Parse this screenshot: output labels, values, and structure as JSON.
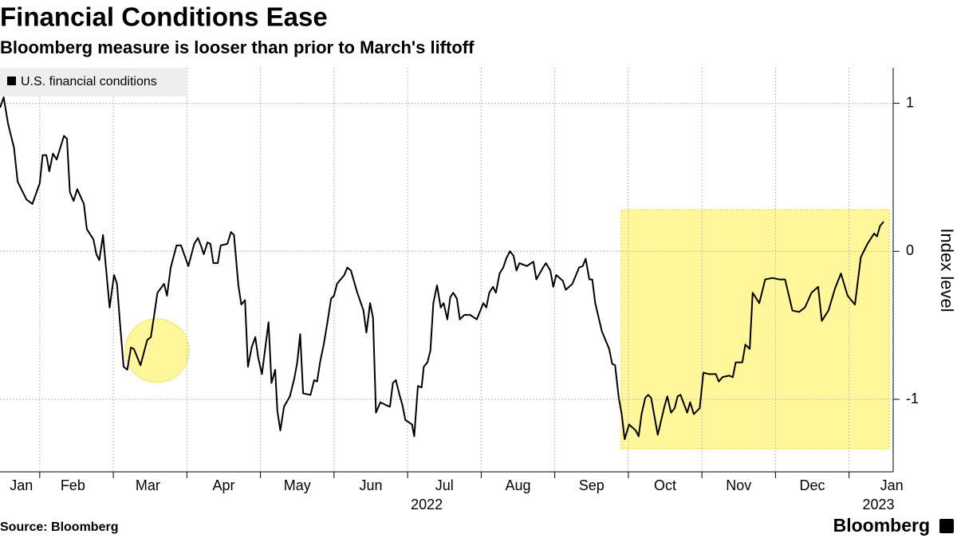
{
  "chart_data": {
    "type": "line",
    "title": "Financial Conditions Ease",
    "subtitle": "Bloomberg measure is looser than prior to March's liftoff",
    "y_axis_label": "Index level",
    "source": "Source: Bloomberg",
    "logo": "Bloomberg",
    "x": [
      0.46,
      0.51,
      0.57,
      0.65,
      0.7,
      0.82,
      0.9,
      1.0,
      1.04,
      1.09,
      1.13,
      1.18,
      1.23,
      1.33,
      1.37,
      1.41,
      1.46,
      1.51,
      1.6,
      1.64,
      1.73,
      1.77,
      1.81,
      1.86,
      1.9,
      1.95,
      2.01,
      2.05,
      2.09,
      2.14,
      2.19,
      2.24,
      2.28,
      2.37,
      2.46,
      2.51,
      2.55,
      2.6,
      2.69,
      2.73,
      2.78,
      2.86,
      2.92,
      3.02,
      3.1,
      3.15,
      3.19,
      3.23,
      3.28,
      3.32,
      3.36,
      3.42,
      3.46,
      3.55,
      3.6,
      3.64,
      3.7,
      3.74,
      3.79,
      3.83,
      3.88,
      3.93,
      3.97,
      4.02,
      4.11,
      4.15,
      4.2,
      4.23,
      4.27,
      4.32,
      4.4,
      4.46,
      4.5,
      4.54,
      4.58,
      4.68,
      4.73,
      4.77,
      4.81,
      4.86,
      4.91,
      4.96,
      5.0,
      5.04,
      5.14,
      5.18,
      5.23,
      5.31,
      5.4,
      5.44,
      5.49,
      5.53,
      5.57,
      5.63,
      5.71,
      5.76,
      5.8,
      5.84,
      5.89,
      5.93,
      5.97,
      6.06,
      6.09,
      6.14,
      6.19,
      6.22,
      6.27,
      6.31,
      6.35,
      6.4,
      6.45,
      6.49,
      6.54,
      6.58,
      6.62,
      6.67,
      6.71,
      6.77,
      6.85,
      6.94,
      7.03,
      7.07,
      7.11,
      7.16,
      7.2,
      7.25,
      7.3,
      7.34,
      7.39,
      7.44,
      7.48,
      7.52,
      7.62,
      7.71,
      7.75,
      7.84,
      7.88,
      7.94,
      7.98,
      8.02,
      8.11,
      8.15,
      8.24,
      8.33,
      8.38,
      8.42,
      8.47,
      8.51,
      8.55,
      8.64,
      8.74,
      8.78,
      8.82,
      8.87,
      8.91,
      8.95,
      9.01,
      9.1,
      9.14,
      9.18,
      9.23,
      9.27,
      9.31,
      9.4,
      9.49,
      9.53,
      9.58,
      9.63,
      9.67,
      9.71,
      9.8,
      9.84,
      9.89,
      9.97,
      10.02,
      10.1,
      10.19,
      10.23,
      10.28,
      10.37,
      10.42,
      10.46,
      10.55,
      10.59,
      10.65,
      10.69,
      10.78,
      10.86,
      10.96,
      11.05,
      11.13,
      11.23,
      11.32,
      11.4,
      11.49,
      11.58,
      11.63,
      11.72,
      11.81,
      11.89,
      11.98,
      12.08,
      12.16,
      12.25,
      12.34,
      12.38,
      12.42,
      12.47
    ],
    "series": [
      {
        "name": "U.S. financial conditions",
        "color": "#000000",
        "values": [
          0.97,
          1.04,
          0.86,
          0.7,
          0.47,
          0.35,
          0.32,
          0.46,
          0.65,
          0.65,
          0.54,
          0.66,
          0.62,
          0.78,
          0.76,
          0.4,
          0.34,
          0.42,
          0.32,
          0.15,
          0.08,
          -0.02,
          -0.06,
          0.11,
          -0.11,
          -0.38,
          -0.16,
          -0.22,
          -0.48,
          -0.78,
          -0.8,
          -0.65,
          -0.66,
          -0.77,
          -0.6,
          -0.58,
          -0.45,
          -0.28,
          -0.22,
          -0.3,
          -0.11,
          0.04,
          0.04,
          -0.1,
          0.05,
          0.09,
          0.04,
          -0.02,
          0.06,
          0.05,
          -0.08,
          -0.08,
          0.04,
          0.05,
          0.13,
          0.11,
          -0.23,
          -0.36,
          -0.33,
          -0.78,
          -0.65,
          -0.58,
          -0.72,
          -0.83,
          -0.48,
          -0.89,
          -0.8,
          -1.08,
          -1.21,
          -1.05,
          -0.98,
          -0.86,
          -0.75,
          -0.56,
          -0.96,
          -0.97,
          -0.87,
          -0.88,
          -0.75,
          -0.63,
          -0.48,
          -0.32,
          -0.3,
          -0.22,
          -0.16,
          -0.11,
          -0.13,
          -0.27,
          -0.4,
          -0.55,
          -0.35,
          -0.45,
          -1.09,
          -1.02,
          -1.04,
          -1.05,
          -0.89,
          -0.87,
          -0.97,
          -1.04,
          -1.14,
          -1.17,
          -1.25,
          -0.91,
          -0.92,
          -0.78,
          -0.75,
          -0.67,
          -0.35,
          -0.23,
          -0.38,
          -0.35,
          -0.46,
          -0.31,
          -0.28,
          -0.32,
          -0.46,
          -0.43,
          -0.43,
          -0.46,
          -0.35,
          -0.38,
          -0.28,
          -0.24,
          -0.28,
          -0.15,
          -0.11,
          -0.05,
          0.0,
          -0.03,
          -0.13,
          -0.08,
          -0.1,
          -0.07,
          -0.19,
          -0.11,
          -0.08,
          -0.13,
          -0.24,
          -0.16,
          -0.2,
          -0.26,
          -0.22,
          -0.11,
          -0.1,
          -0.05,
          -0.19,
          -0.19,
          -0.35,
          -0.54,
          -0.66,
          -0.76,
          -0.77,
          -0.99,
          -1.1,
          -1.27,
          -1.17,
          -1.21,
          -1.25,
          -1.1,
          -0.99,
          -0.97,
          -0.99,
          -1.24,
          -1.05,
          -0.98,
          -1.09,
          -1.06,
          -0.98,
          -0.97,
          -1.09,
          -1.02,
          -1.1,
          -1.06,
          -0.82,
          -0.83,
          -0.83,
          -0.88,
          -0.85,
          -0.84,
          -0.85,
          -0.75,
          -0.75,
          -0.63,
          -0.66,
          -0.28,
          -0.35,
          -0.19,
          -0.18,
          -0.19,
          -0.19,
          -0.4,
          -0.41,
          -0.38,
          -0.28,
          -0.24,
          -0.47,
          -0.4,
          -0.25,
          -0.15,
          -0.3,
          -0.36,
          -0.04,
          0.05,
          0.12,
          0.1,
          0.17,
          0.2
        ]
      }
    ],
    "xlim": [
      0.46,
      12.6
    ],
    "xticks": [
      {
        "value": 0.75,
        "label": "Jan"
      },
      {
        "value": 1.45,
        "label": "Feb"
      },
      {
        "value": 2.47,
        "label": "Mar"
      },
      {
        "value": 3.5,
        "label": "Apr"
      },
      {
        "value": 4.5,
        "label": "May"
      },
      {
        "value": 5.5,
        "label": "Jun"
      },
      {
        "value": 6.5,
        "label": "Jul"
      },
      {
        "value": 7.5,
        "label": "Aug"
      },
      {
        "value": 8.5,
        "label": "Sep"
      },
      {
        "value": 9.5,
        "label": "Oct"
      },
      {
        "value": 10.5,
        "label": "Nov"
      },
      {
        "value": 11.5,
        "label": "Dec"
      },
      {
        "value": 12.58,
        "label": "Jan"
      }
    ],
    "year_labels": [
      {
        "value": 6.26,
        "label": "2022"
      },
      {
        "value": 12.4,
        "label": "2023"
      }
    ],
    "xgrid": [
      1,
      2,
      3,
      4,
      5,
      6,
      7,
      8,
      9,
      10,
      11,
      12
    ],
    "ylim": [
      -1.49,
      1.24
    ],
    "yticks": [
      -1,
      0,
      1
    ],
    "grid": true
  }
}
